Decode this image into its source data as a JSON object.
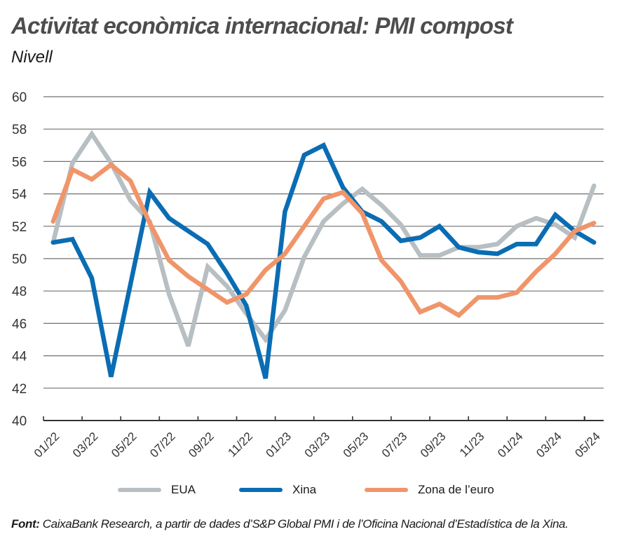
{
  "chart_data": {
    "type": "line",
    "title": "Activitat econòmica internacional: PMI compost",
    "subtitle": "Nivell",
    "xlabel": "",
    "ylabel": "",
    "ylim": [
      40,
      60
    ],
    "yticks": [
      40,
      42,
      44,
      46,
      48,
      50,
      52,
      54,
      56,
      58,
      60
    ],
    "grid": true,
    "legend_position": "bottom",
    "x": [
      "01/22",
      "02/22",
      "03/22",
      "04/22",
      "05/22",
      "06/22",
      "07/22",
      "08/22",
      "09/22",
      "10/22",
      "11/22",
      "12/22",
      "01/23",
      "02/23",
      "03/23",
      "04/23",
      "05/23",
      "06/23",
      "07/23",
      "08/23",
      "09/23",
      "10/23",
      "11/23",
      "12/23",
      "01/24",
      "02/24",
      "03/24",
      "04/24",
      "05/24"
    ],
    "xtick_labels": [
      "01/22",
      "03/22",
      "05/22",
      "07/22",
      "09/22",
      "11/22",
      "01/23",
      "03/23",
      "05/23",
      "07/23",
      "09/23",
      "11/23",
      "01/24",
      "03/24",
      "05/24"
    ],
    "series": [
      {
        "name": "EUA",
        "color": "#b7bfc3",
        "values": [
          51.0,
          55.9,
          57.7,
          55.9,
          53.6,
          52.3,
          47.8,
          44.6,
          49.5,
          48.3,
          46.6,
          45.0,
          46.8,
          50.1,
          52.3,
          53.4,
          54.3,
          53.3,
          52.1,
          50.2,
          50.2,
          50.7,
          50.7,
          50.9,
          52.0,
          52.5,
          52.1,
          51.3,
          54.5
        ]
      },
      {
        "name": "Xina",
        "color": "#0a6db3",
        "values": [
          51.0,
          51.2,
          48.8,
          42.7,
          48.4,
          54.1,
          52.5,
          51.7,
          50.9,
          49.1,
          47.1,
          42.6,
          52.9,
          56.4,
          57.0,
          54.4,
          52.9,
          52.3,
          51.1,
          51.3,
          52.0,
          50.7,
          50.4,
          50.3,
          50.9,
          50.9,
          52.7,
          51.7,
          51.0
        ]
      },
      {
        "name": "Zona de l’euro",
        "color": "#f0956a",
        "values": [
          52.3,
          55.5,
          54.9,
          55.8,
          54.8,
          52.2,
          49.9,
          48.9,
          48.1,
          47.3,
          47.8,
          49.3,
          50.3,
          52.0,
          53.7,
          54.1,
          52.8,
          49.9,
          48.6,
          46.7,
          47.2,
          46.5,
          47.6,
          47.6,
          47.9,
          49.2,
          50.3,
          51.7,
          52.2
        ]
      }
    ]
  },
  "source": {
    "label": "Font:",
    "text": " CaixaBank Research, a partir de dades d’S&P Global PMI i de l’Oficina Nacional d’Estadística de la Xina."
  },
  "colors": {
    "title": "#4d4d4d",
    "grid": "#707070",
    "axis": "#333333"
  }
}
